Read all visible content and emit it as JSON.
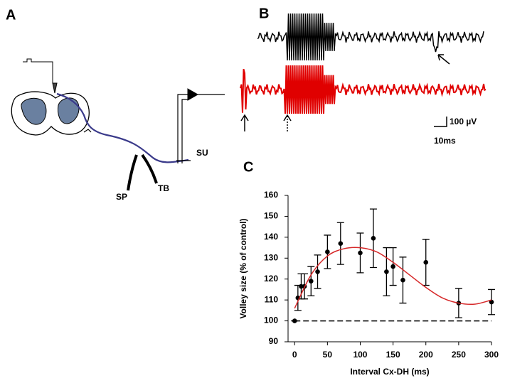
{
  "panels": {
    "a": "A",
    "b": "B",
    "c": "C"
  },
  "diagram": {
    "sp": "SP",
    "tb": "TB",
    "su": "SU"
  },
  "traces": {
    "scale_amplitude": "100 µV",
    "scale_time": "10ms"
  },
  "chart_data": {
    "type": "scatter",
    "x_label": "Interval Cx-DH (ms)",
    "y_label": "Volley size (% of control)",
    "xlim": [
      -10,
      300
    ],
    "xticks": [
      0,
      50,
      100,
      150,
      200,
      250,
      300
    ],
    "ylim": [
      90,
      160
    ],
    "yticks": [
      90,
      100,
      110,
      120,
      130,
      140,
      150,
      160
    ],
    "series": [
      {
        "color": "#000000",
        "x": [
          0,
          5,
          10,
          15,
          25,
          35,
          50,
          70,
          100,
          120,
          140,
          150,
          165,
          200,
          250,
          300
        ],
        "values": [
          100,
          111,
          116.5,
          116.5,
          119,
          123.5,
          133,
          137,
          132.5,
          139.5,
          123.5,
          126,
          119.5,
          128,
          108.5,
          109
        ],
        "errors": [
          0,
          6,
          6,
          6,
          7,
          8,
          8,
          10,
          9.5,
          14,
          11.5,
          9,
          11,
          11,
          7,
          6
        ]
      },
      {
        "type": "line",
        "color": "#d62728",
        "x": [
          0,
          25,
          50,
          75,
          100,
          125,
          150,
          175,
          200,
          225,
          250,
          275,
          300
        ],
        "values": [
          106,
          122,
          131,
          134.5,
          135,
          133,
          128,
          122,
          116,
          111,
          108.5,
          108,
          110
        ]
      }
    ],
    "reference_line": 100
  }
}
